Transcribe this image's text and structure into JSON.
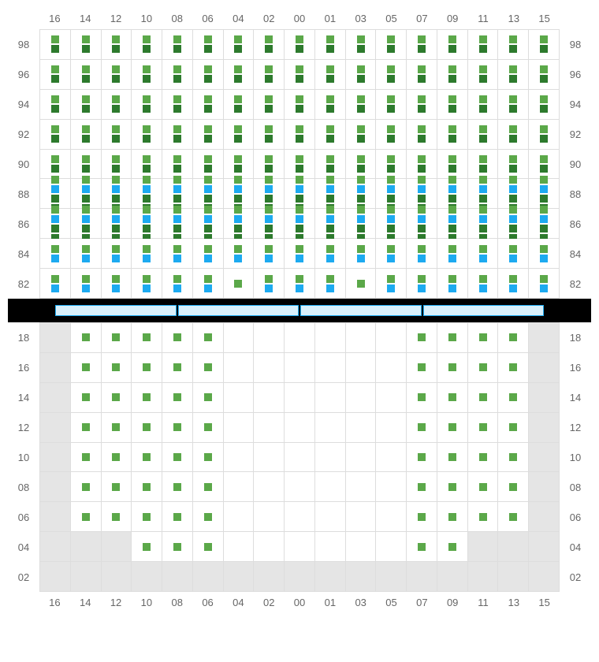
{
  "cols": [
    "16",
    "14",
    "12",
    "10",
    "08",
    "06",
    "04",
    "02",
    "00",
    "01",
    "03",
    "05",
    "07",
    "09",
    "11",
    "13",
    "15"
  ],
  "topRows": [
    "98",
    "96",
    "94",
    "92",
    "90",
    "88",
    "86",
    "84",
    "82"
  ],
  "botRows": [
    "18",
    "16",
    "14",
    "12",
    "10",
    "08",
    "06",
    "04",
    "02"
  ],
  "colors": {
    "green": "#5ba849",
    "darkgreen": "#2d7a2d",
    "blue": "#1daaf0",
    "grey": "#e5e5e5",
    "border": "#dddddd",
    "label": "#666666",
    "stageFill": "#d9f0fb",
    "stageBorder": "#1daaf0"
  },
  "stageSegments": 4,
  "topPattern": {
    "comment": "marks per cell; arrays of color-codes g/dg/b; 17 cols × 9 rows",
    "rows": [
      {
        "r": "98",
        "cells": [
          [
            "g",
            "dg"
          ],
          [
            "g",
            "dg"
          ],
          [
            "g",
            "dg"
          ],
          [
            "g",
            "dg"
          ],
          [
            "g",
            "dg"
          ],
          [
            "g",
            "dg"
          ],
          [
            "g",
            "dg"
          ],
          [
            "g",
            "dg"
          ],
          [
            "g",
            "dg"
          ],
          [
            "g",
            "dg"
          ],
          [
            "g",
            "dg"
          ],
          [
            "g",
            "dg"
          ],
          [
            "g",
            "dg"
          ],
          [
            "g",
            "dg"
          ],
          [
            "g",
            "dg"
          ],
          [
            "g",
            "dg"
          ],
          [
            "g",
            "dg"
          ]
        ]
      },
      {
        "r": "96",
        "cells": [
          [
            "g",
            "dg"
          ],
          [
            "g",
            "dg"
          ],
          [
            "g",
            "dg"
          ],
          [
            "g",
            "dg"
          ],
          [
            "g",
            "dg"
          ],
          [
            "g",
            "dg"
          ],
          [
            "g",
            "dg"
          ],
          [
            "g",
            "dg"
          ],
          [
            "g",
            "dg"
          ],
          [
            "g",
            "dg"
          ],
          [
            "g",
            "dg"
          ],
          [
            "g",
            "dg"
          ],
          [
            "g",
            "dg"
          ],
          [
            "g",
            "dg"
          ],
          [
            "g",
            "dg"
          ],
          [
            "g",
            "dg"
          ],
          [
            "g",
            "dg"
          ]
        ]
      },
      {
        "r": "94",
        "cells": [
          [
            "g",
            "dg"
          ],
          [
            "g",
            "dg"
          ],
          [
            "g",
            "dg"
          ],
          [
            "g",
            "dg"
          ],
          [
            "g",
            "dg"
          ],
          [
            "g",
            "dg"
          ],
          [
            "g",
            "dg"
          ],
          [
            "g",
            "dg"
          ],
          [
            "g",
            "dg"
          ],
          [
            "g",
            "dg"
          ],
          [
            "g",
            "dg"
          ],
          [
            "g",
            "dg"
          ],
          [
            "g",
            "dg"
          ],
          [
            "g",
            "dg"
          ],
          [
            "g",
            "dg"
          ],
          [
            "g",
            "dg"
          ],
          [
            "g",
            "dg"
          ]
        ]
      },
      {
        "r": "92",
        "cells": [
          [
            "g",
            "dg"
          ],
          [
            "g",
            "dg"
          ],
          [
            "g",
            "dg"
          ],
          [
            "g",
            "dg"
          ],
          [
            "g",
            "dg"
          ],
          [
            "g",
            "dg"
          ],
          [
            "g",
            "dg"
          ],
          [
            "g",
            "dg"
          ],
          [
            "g",
            "dg"
          ],
          [
            "g",
            "dg"
          ],
          [
            "g",
            "dg"
          ],
          [
            "g",
            "dg"
          ],
          [
            "g",
            "dg"
          ],
          [
            "g",
            "dg"
          ],
          [
            "g",
            "dg"
          ],
          [
            "g",
            "dg"
          ],
          [
            "g",
            "dg"
          ]
        ]
      },
      {
        "r": "90",
        "cells": [
          [
            "g",
            "dg"
          ],
          [
            "g",
            "dg"
          ],
          [
            "g",
            "dg"
          ],
          [
            "g",
            "dg"
          ],
          [
            "g",
            "dg"
          ],
          [
            "g",
            "dg"
          ],
          [
            "g",
            "dg"
          ],
          [
            "g",
            "dg"
          ],
          [
            "g",
            "dg"
          ],
          [
            "g",
            "dg"
          ],
          [
            "g",
            "dg"
          ],
          [
            "g",
            "dg"
          ],
          [
            "g",
            "dg"
          ],
          [
            "g",
            "dg"
          ],
          [
            "g",
            "dg"
          ],
          [
            "g",
            "dg"
          ],
          [
            "g",
            "dg"
          ]
        ]
      },
      {
        "r": "88",
        "cells": [
          [
            "g",
            "b",
            "dg",
            "dg"
          ],
          [
            "g",
            "b",
            "dg",
            "dg"
          ],
          [
            "g",
            "b",
            "dg",
            "dg"
          ],
          [
            "g",
            "b",
            "dg",
            "dg"
          ],
          [
            "g",
            "b",
            "dg",
            "dg"
          ],
          [
            "g",
            "b",
            "dg",
            "dg"
          ],
          [
            "g",
            "b",
            "dg",
            "dg"
          ],
          [
            "g",
            "b",
            "dg",
            "dg"
          ],
          [
            "g",
            "b",
            "dg",
            "dg"
          ],
          [
            "g",
            "b",
            "dg",
            "dg"
          ],
          [
            "g",
            "b",
            "dg",
            "dg"
          ],
          [
            "g",
            "b",
            "dg",
            "dg"
          ],
          [
            "g",
            "b",
            "dg",
            "dg"
          ],
          [
            "g",
            "b",
            "dg",
            "dg"
          ],
          [
            "g",
            "b",
            "dg",
            "dg"
          ],
          [
            "g",
            "b",
            "dg",
            "dg"
          ],
          [
            "g",
            "b",
            "dg",
            "dg"
          ]
        ]
      },
      {
        "r": "86",
        "cells": [
          [
            "g",
            "b",
            "dg",
            "dg"
          ],
          [
            "g",
            "b",
            "dg",
            "dg"
          ],
          [
            "g",
            "b",
            "dg",
            "dg"
          ],
          [
            "g",
            "b",
            "dg",
            "dg"
          ],
          [
            "g",
            "b",
            "dg",
            "dg"
          ],
          [
            "g",
            "b",
            "dg",
            "dg"
          ],
          [
            "g",
            "b",
            "dg",
            "dg"
          ],
          [
            "g",
            "b",
            "dg",
            "dg"
          ],
          [
            "g",
            "b",
            "dg",
            "dg"
          ],
          [
            "g",
            "b",
            "dg",
            "dg"
          ],
          [
            "g",
            "b",
            "dg",
            "dg"
          ],
          [
            "g",
            "b",
            "dg",
            "dg"
          ],
          [
            "g",
            "b",
            "dg",
            "dg"
          ],
          [
            "g",
            "b",
            "dg",
            "dg"
          ],
          [
            "g",
            "b",
            "dg",
            "dg"
          ],
          [
            "g",
            "b",
            "dg",
            "dg"
          ],
          [
            "g",
            "b",
            "dg",
            "dg"
          ]
        ]
      },
      {
        "r": "84",
        "cells": [
          [
            "g",
            "b"
          ],
          [
            "g",
            "b"
          ],
          [
            "g",
            "b"
          ],
          [
            "g",
            "b"
          ],
          [
            "g",
            "b"
          ],
          [
            "g",
            "b"
          ],
          [
            "g",
            "b"
          ],
          [
            "g",
            "b"
          ],
          [
            "g",
            "b"
          ],
          [
            "g",
            "b"
          ],
          [
            "g",
            "b"
          ],
          [
            "g",
            "b"
          ],
          [
            "g",
            "b"
          ],
          [
            "g",
            "b"
          ],
          [
            "g",
            "b"
          ],
          [
            "g",
            "b"
          ],
          [
            "g",
            "b"
          ]
        ]
      },
      {
        "r": "82",
        "cells": [
          [
            "g",
            "b"
          ],
          [
            "g",
            "b"
          ],
          [
            "g",
            "b"
          ],
          [
            "g",
            "b"
          ],
          [
            "g",
            "b"
          ],
          [
            "g",
            "b"
          ],
          [
            "g"
          ],
          [
            "g",
            "b"
          ],
          [
            "g",
            "b"
          ],
          [
            "g",
            "b"
          ],
          [
            "g"
          ],
          [
            "g",
            "b"
          ],
          [
            "g",
            "b"
          ],
          [
            "g",
            "b"
          ],
          [
            "g",
            "b"
          ],
          [
            "g",
            "b"
          ],
          [
            "g",
            "b"
          ]
        ]
      }
    ]
  },
  "botPattern": {
    "rows": [
      {
        "r": "18",
        "cells": [
          null,
          [
            "g"
          ],
          [
            "g"
          ],
          [
            "g"
          ],
          [
            "g"
          ],
          [
            "g"
          ],
          [],
          [],
          [],
          [],
          [],
          [],
          [
            "g"
          ],
          [
            "g"
          ],
          [
            "g"
          ],
          [
            "g"
          ],
          null
        ]
      },
      {
        "r": "16",
        "cells": [
          null,
          [
            "g"
          ],
          [
            "g"
          ],
          [
            "g"
          ],
          [
            "g"
          ],
          [
            "g"
          ],
          [],
          [],
          [],
          [],
          [],
          [],
          [
            "g"
          ],
          [
            "g"
          ],
          [
            "g"
          ],
          [
            "g"
          ],
          null
        ]
      },
      {
        "r": "14",
        "cells": [
          null,
          [
            "g"
          ],
          [
            "g"
          ],
          [
            "g"
          ],
          [
            "g"
          ],
          [
            "g"
          ],
          [],
          [],
          [],
          [],
          [],
          [],
          [
            "g"
          ],
          [
            "g"
          ],
          [
            "g"
          ],
          [
            "g"
          ],
          null
        ]
      },
      {
        "r": "12",
        "cells": [
          null,
          [
            "g"
          ],
          [
            "g"
          ],
          [
            "g"
          ],
          [
            "g"
          ],
          [
            "g"
          ],
          [],
          [],
          [],
          [],
          [],
          [],
          [
            "g"
          ],
          [
            "g"
          ],
          [
            "g"
          ],
          [
            "g"
          ],
          null
        ]
      },
      {
        "r": "10",
        "cells": [
          null,
          [
            "g"
          ],
          [
            "g"
          ],
          [
            "g"
          ],
          [
            "g"
          ],
          [
            "g"
          ],
          [],
          [],
          [],
          [],
          [],
          [],
          [
            "g"
          ],
          [
            "g"
          ],
          [
            "g"
          ],
          [
            "g"
          ],
          null
        ]
      },
      {
        "r": "08",
        "cells": [
          null,
          [
            "g"
          ],
          [
            "g"
          ],
          [
            "g"
          ],
          [
            "g"
          ],
          [
            "g"
          ],
          [],
          [],
          [],
          [],
          [],
          [],
          [
            "g"
          ],
          [
            "g"
          ],
          [
            "g"
          ],
          [
            "g"
          ],
          null
        ]
      },
      {
        "r": "06",
        "cells": [
          null,
          [
            "g"
          ],
          [
            "g"
          ],
          [
            "g"
          ],
          [
            "g"
          ],
          [
            "g"
          ],
          [],
          [],
          [],
          [],
          [],
          [],
          [
            "g"
          ],
          [
            "g"
          ],
          [
            "g"
          ],
          [
            "g"
          ],
          null
        ]
      },
      {
        "r": "04",
        "cells": [
          null,
          null,
          null,
          [
            "g"
          ],
          [
            "g"
          ],
          [
            "g"
          ],
          [],
          [],
          [],
          [],
          [],
          [],
          [
            "g"
          ],
          [
            "g"
          ],
          null,
          null,
          null
        ]
      },
      {
        "r": "02",
        "cells": [
          null,
          null,
          null,
          null,
          null,
          null,
          null,
          null,
          null,
          null,
          null,
          null,
          null,
          null,
          null,
          null,
          null
        ]
      }
    ]
  }
}
